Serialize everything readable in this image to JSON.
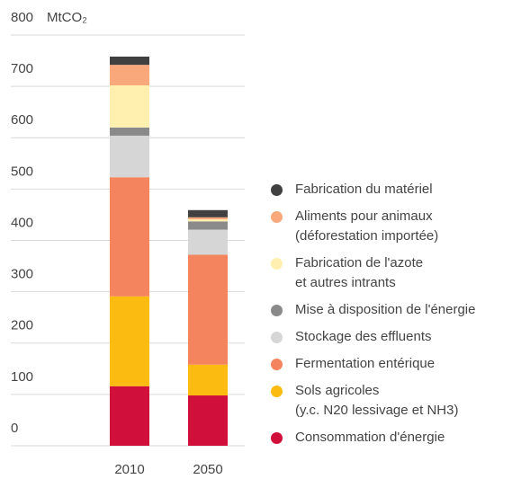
{
  "chart_data": {
    "type": "stacked_bar",
    "y_unit": "MtCO₂",
    "categories": [
      "2010",
      "2050"
    ],
    "ylim": [
      0,
      800
    ],
    "yticks": [
      0,
      100,
      200,
      300,
      400,
      500,
      600,
      700,
      800
    ],
    "grid": true,
    "series": [
      {
        "name": "Consommation d'énergie",
        "color": "#d0103a",
        "values": [
          116,
          98
        ]
      },
      {
        "name": "Sols agricoles\n(y.c. N20 lessivage et NH3)",
        "color": "#fbbb10",
        "values": [
          175,
          60
        ]
      },
      {
        "name": "Fermentation entérique",
        "color": "#f3845e",
        "values": [
          232,
          214
        ]
      },
      {
        "name": "Stockage des effluents",
        "color": "#d6d6d6",
        "values": [
          81,
          49
        ]
      },
      {
        "name": "Mise à disposition de l'énergie",
        "color": "#8a8a8a",
        "values": [
          16,
          16
        ]
      },
      {
        "name": "Fabrication de l'azote\net autres intrants",
        "color": "#fff0b0",
        "values": [
          82,
          4
        ]
      },
      {
        "name": "Aliments pour animaux\n(déforestation importée)",
        "color": "#f9a87c",
        "values": [
          40,
          4
        ]
      },
      {
        "name": "Fabrication du matériel",
        "color": "#404040",
        "values": [
          16,
          14
        ]
      }
    ],
    "legend": "right"
  }
}
